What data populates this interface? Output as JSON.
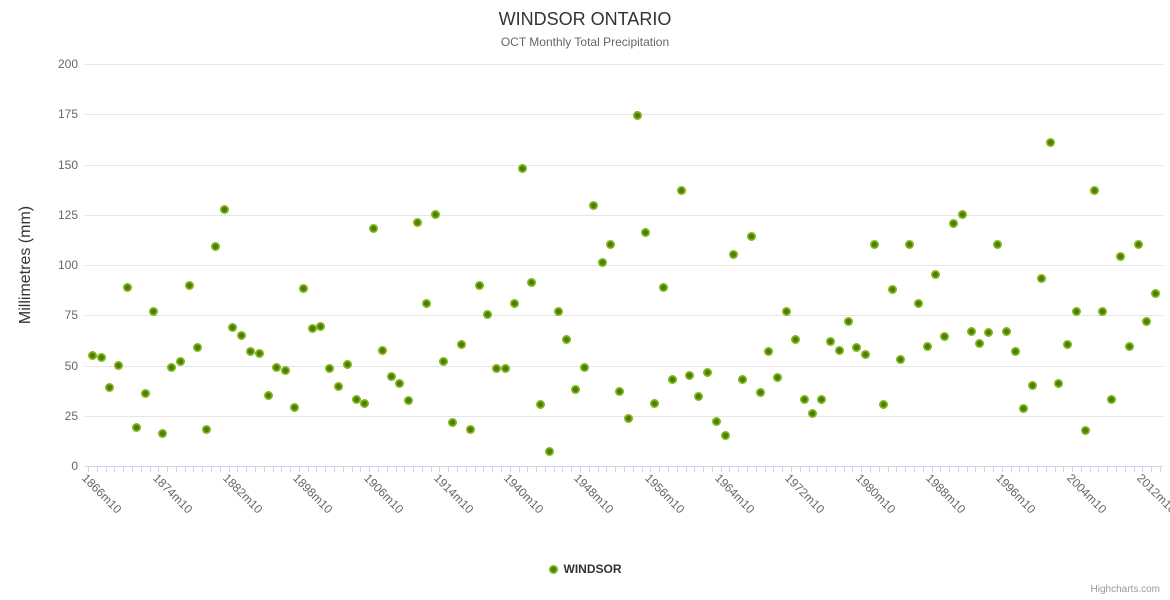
{
  "header": {
    "title": "WINDSOR ONTARIO",
    "subtitle": "OCT Monthly Total Precipitation"
  },
  "y_axis": {
    "title": "Millimetres (mm)"
  },
  "legend": {
    "series_label": "WINDSOR"
  },
  "credit": {
    "text": "Highcharts.com"
  },
  "colors": {
    "point_outer": "#7fb617",
    "point_inner": "#4d7d08",
    "gridline": "#e6e6e6",
    "axis_line": "#ccd6eb",
    "title_text": "#333333",
    "subtitle_text": "#666666",
    "axis_label_text": "#666666",
    "credit_text": "#999999"
  },
  "chart_data": {
    "type": "scatter",
    "title": "WINDSOR ONTARIO",
    "subtitle": "OCT Monthly Total Precipitation",
    "ylabel": "Millimetres (mm)",
    "ylim": [
      0,
      200
    ],
    "yticks": [
      0,
      25,
      50,
      75,
      100,
      125,
      150,
      175,
      200
    ],
    "grid": true,
    "legend_position": "bottom",
    "x_axis": {
      "type": "category",
      "label_every_n_categories": 8,
      "tick_labels": [
        "1866m10",
        "1874m10",
        "1882m10",
        "1898m10",
        "1906m10",
        "1914m10",
        "1940m10",
        "1948m10",
        "1956m10",
        "1964m10",
        "1972m10",
        "1980m10",
        "1988m10",
        "1996m10",
        "2004m10",
        "2012m10"
      ]
    },
    "series": [
      {
        "name": "WINDSOR",
        "color": "#7fb617",
        "values": [
          55,
          54,
          39,
          50,
          89,
          19,
          36,
          77,
          16,
          49,
          52,
          90,
          59,
          18,
          109,
          127.5,
          69,
          65,
          57,
          56,
          35,
          49,
          47.5,
          29,
          88.5,
          68.5,
          69.5,
          48.5,
          39.5,
          50.5,
          33,
          31,
          118,
          57.5,
          44.5,
          41,
          32.5,
          121,
          81,
          125,
          52,
          21.5,
          60.5,
          18,
          90,
          75.5,
          48.5,
          48.5,
          81,
          148,
          91.5,
          30.5,
          7,
          77,
          63,
          38,
          49,
          129.5,
          101,
          110,
          37,
          23.5,
          174.5,
          116,
          31,
          89,
          43,
          137,
          45,
          34.5,
          46.5,
          22,
          15,
          105,
          43,
          114,
          36.5,
          57,
          44,
          77,
          63,
          33,
          26,
          33,
          62,
          57.5,
          72,
          59,
          55.5,
          110,
          30.5,
          88,
          53,
          110,
          81,
          59.5,
          95.5,
          64.5,
          120.5,
          125,
          67,
          61,
          66.5,
          110,
          67,
          57,
          28.5,
          40,
          93.5,
          161,
          41,
          60.5,
          77,
          17.5,
          137,
          77,
          33,
          104,
          59.5,
          110,
          72,
          86
        ]
      }
    ]
  }
}
